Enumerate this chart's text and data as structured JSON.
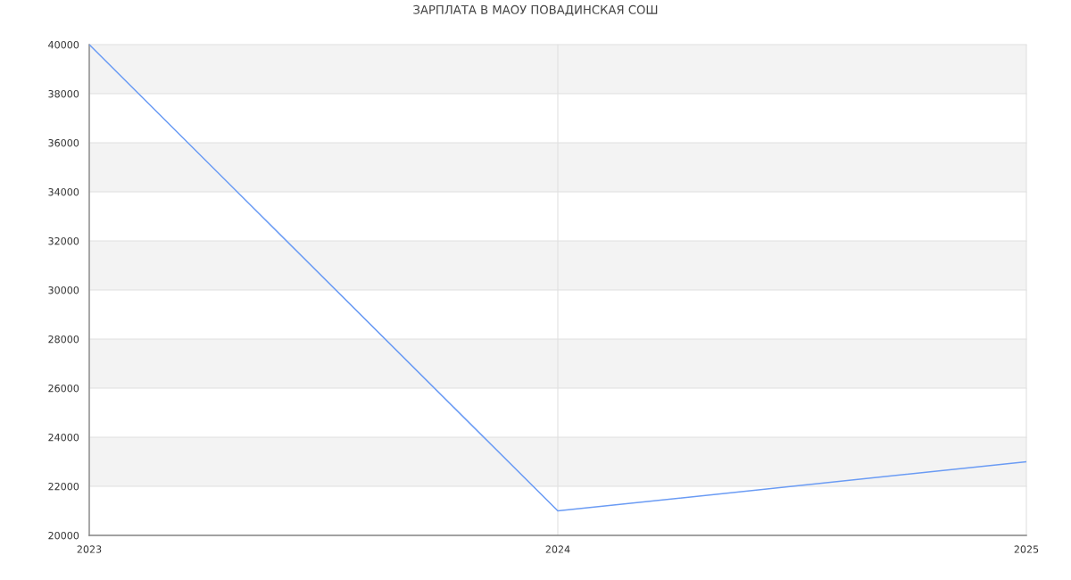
{
  "chart_data": {
    "type": "line",
    "title": "ЗАРПЛАТА В МАОУ ПОВАДИНСКАЯ СОШ",
    "x": [
      2023,
      2024,
      2025
    ],
    "series": [
      {
        "color": "#6a9bf4",
        "values": [
          40000,
          21000,
          23000
        ]
      }
    ],
    "xlim": [
      2023,
      2025
    ],
    "xticks": [
      2023,
      2024,
      2025
    ],
    "ylim": [
      20000,
      40000
    ],
    "yticks": [
      20000,
      22000,
      24000,
      26000,
      28000,
      30000,
      32000,
      34000,
      36000,
      38000,
      40000
    ],
    "bands": [
      {
        "axis": "y",
        "from": 22000,
        "to": 24000,
        "color": "#f3f3f3"
      },
      {
        "axis": "y",
        "from": 26000,
        "to": 28000,
        "color": "#f3f3f3"
      },
      {
        "axis": "y",
        "from": 30000,
        "to": 32000,
        "color": "#f3f3f3"
      },
      {
        "axis": "y",
        "from": 34000,
        "to": 36000,
        "color": "#f3f3f3"
      },
      {
        "axis": "y",
        "from": 38000,
        "to": 40000,
        "color": "#f3f3f3"
      }
    ],
    "grid": true,
    "marker": "none",
    "line_style": "solid"
  }
}
